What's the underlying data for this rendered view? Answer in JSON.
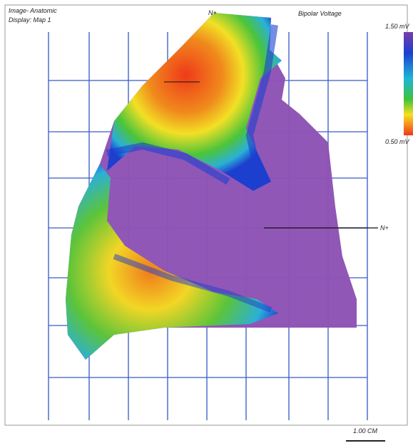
{
  "header": {
    "image_label": "Image- Anatomic",
    "display_label": "Display: Map 1",
    "map_title": "Bipolar Voltage"
  },
  "colorbar": {
    "top_label": "1.50 mV",
    "bottom_label": "0.50 mV"
  },
  "markers": {
    "top": "N+",
    "right": "N+"
  },
  "scale": {
    "label": "1.00 CM"
  }
}
